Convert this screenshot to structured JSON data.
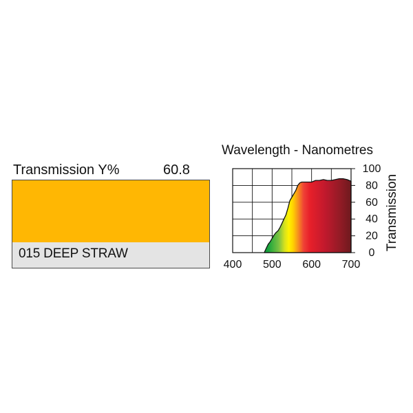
{
  "filter": {
    "transmission_label": "Transmission Y%",
    "transmission_value": "60.8",
    "name": "015 DEEP STRAW",
    "swatch_color": "#ffb703",
    "name_box_color": "#e4e4e4"
  },
  "chart_data": {
    "type": "area",
    "title": "Wavelength - Nanometres",
    "xlabel": "",
    "ylabel": "Transmission",
    "xlim": [
      400,
      700
    ],
    "ylim": [
      0,
      100
    ],
    "x_ticks": [
      400,
      500,
      600,
      700
    ],
    "y_ticks": [
      0,
      20,
      40,
      60,
      80,
      100
    ],
    "grid": true,
    "series": [
      {
        "x": [
          480,
          485,
          490,
          495,
          500,
          505,
          510,
          515,
          520,
          525,
          530,
          535,
          540,
          545,
          550,
          555,
          560,
          565,
          570,
          575,
          580,
          590,
          600,
          610,
          620,
          630,
          640,
          650,
          660,
          670,
          680,
          690,
          700
        ],
        "y": [
          0,
          5,
          10,
          13,
          17,
          21,
          24,
          26,
          30,
          35,
          40,
          45,
          53,
          62,
          66,
          70,
          74,
          80,
          83,
          84,
          84,
          84,
          84,
          86,
          86,
          87,
          86,
          86,
          87,
          88,
          88,
          87,
          85
        ]
      }
    ]
  }
}
